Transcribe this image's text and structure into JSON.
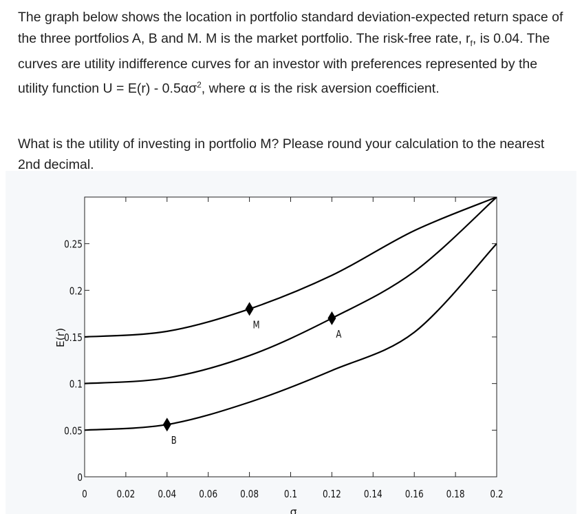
{
  "question": {
    "paragraph1_parts": [
      "The graph below shows the location in portfolio standard deviation-expected return space of the three portfolios A, B and M. M is the market portfolio. The risk-free rate, r",
      "f",
      ", is 0.04. The curves are utility indifference curves for an investor with preferences represented by the utility function U = E(r) - 0.5ασ",
      "2",
      ", where α is the risk aversion coefficient."
    ],
    "paragraph2": "What is the utility of investing in portfolio M? Please round your calculation to the nearest 2nd decimal."
  },
  "chart_data": {
    "type": "line",
    "xlabel": "σ",
    "ylabel": "E(r)",
    "xlim": [
      0,
      0.2
    ],
    "ylim": [
      0,
      0.3
    ],
    "x_ticks": [
      "0",
      "0.02",
      "0.04",
      "0.06",
      "0.08",
      "0.1",
      "0.12",
      "0.14",
      "0.16",
      "0.18",
      "0.2"
    ],
    "y_ticks": [
      "0",
      "0.05",
      "0.1",
      "0.15",
      "0.2",
      "0.25"
    ],
    "series": [
      {
        "intercept": 0.15,
        "x": [
          0,
          0.04,
          0.08,
          0.12,
          0.16,
          0.2
        ],
        "y": [
          0.15,
          0.156,
          0.18,
          0.216,
          0.264,
          0.3
        ]
      },
      {
        "intercept": 0.1,
        "x": [
          0,
          0.04,
          0.08,
          0.12,
          0.16,
          0.2
        ],
        "y": [
          0.1,
          0.106,
          0.13,
          0.17,
          0.22,
          0.3
        ]
      },
      {
        "intercept": 0.05,
        "x": [
          0,
          0.04,
          0.08,
          0.12,
          0.16,
          0.2
        ],
        "y": [
          0.05,
          0.056,
          0.08,
          0.114,
          0.155,
          0.25
        ]
      }
    ],
    "points": [
      {
        "label": "M",
        "x": 0.08,
        "y": 0.18
      },
      {
        "label": "A",
        "x": 0.12,
        "y": 0.17
      },
      {
        "label": "B",
        "x": 0.04,
        "y": 0.056
      }
    ],
    "grid": false
  }
}
